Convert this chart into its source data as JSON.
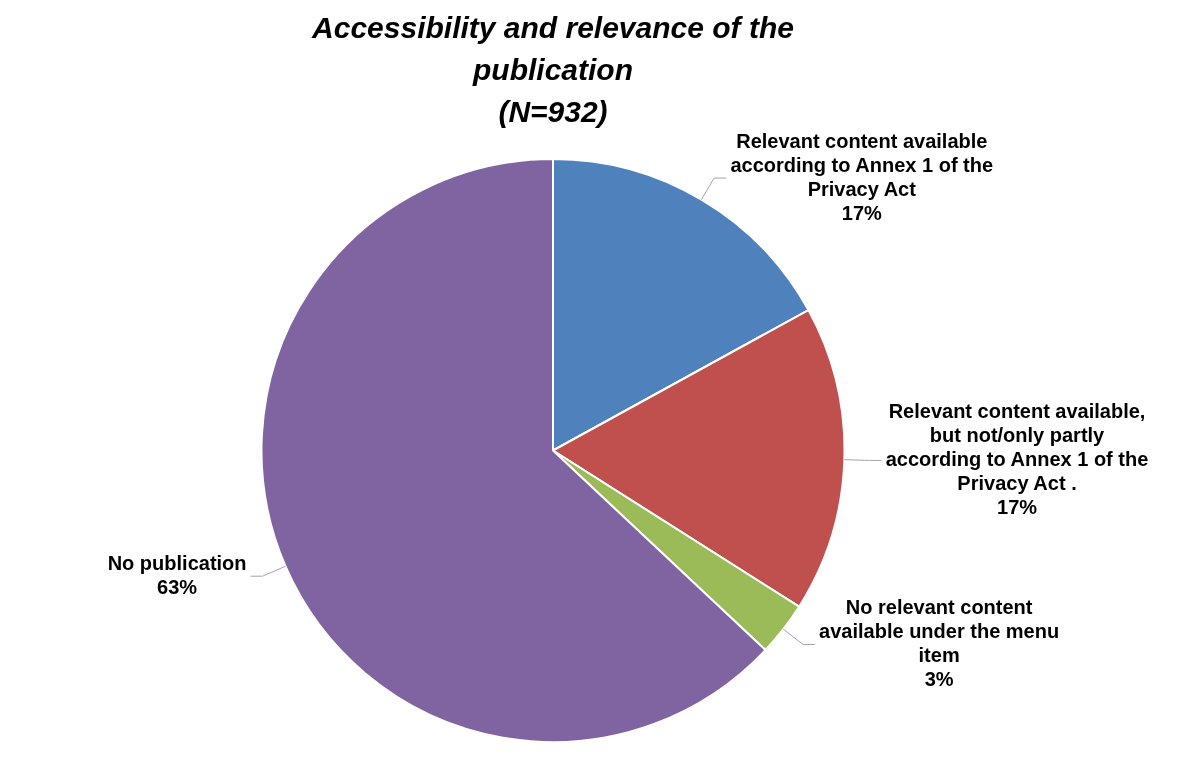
{
  "chart_data": {
    "type": "pie",
    "title": "Accessibility and relevance of the publication",
    "subtitle": "(N=932)",
    "categories": [
      "Relevant content available according to Annex 1 of the Privacy Act",
      "Relevant content available, but not/only partly according to Annex 1 of the Privacy Act .",
      "No relevant content available under the menu item",
      "No publication"
    ],
    "values": [
      17,
      17,
      3,
      63
    ],
    "colors": [
      "#4f81bd",
      "#c0504d",
      "#9bbb59",
      "#8064a2"
    ],
    "value_labels": [
      "17%",
      "17%",
      "3%",
      "63%"
    ],
    "legend": false
  }
}
